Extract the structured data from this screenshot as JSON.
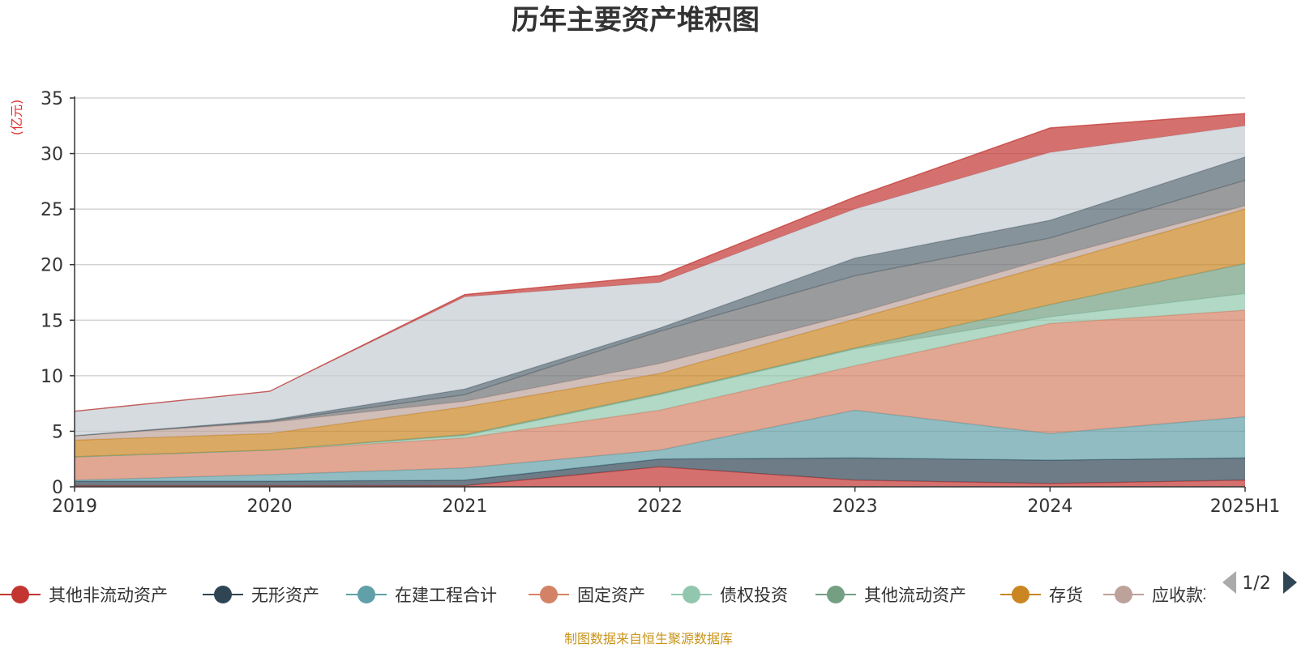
{
  "chart_data": {
    "type": "area",
    "stacked": true,
    "title": "历年主要资产堆积图",
    "unit": "(亿元)",
    "x": [
      "2019",
      "2020",
      "2021",
      "2022",
      "2023",
      "2024",
      "2025H1"
    ],
    "ylim": [
      0,
      35
    ],
    "yticks": [
      0,
      5,
      10,
      15,
      20,
      25,
      30,
      35
    ],
    "grid": true,
    "legend_position": "bottom",
    "series": [
      {
        "name": "其他非流动资产",
        "color": "#c23531",
        "values": [
          0.1,
          0.1,
          0.1,
          1.8,
          0.6,
          0.3,
          0.6
        ]
      },
      {
        "name": "无形资产",
        "color": "#2f4554",
        "values": [
          0.4,
          0.4,
          0.5,
          0.7,
          2.0,
          2.1,
          2.0
        ]
      },
      {
        "name": "在建工程合计",
        "color": "#61a0a8",
        "values": [
          0.1,
          0.6,
          1.1,
          0.8,
          4.3,
          2.4,
          3.7
        ]
      },
      {
        "name": "固定资产",
        "color": "#d48265",
        "values": [
          2.1,
          2.2,
          2.7,
          3.6,
          4.0,
          9.9,
          9.6
        ]
      },
      {
        "name": "债权投资",
        "color": "#91c7ae",
        "values": [
          0.0,
          0.0,
          0.2,
          1.4,
          1.5,
          0.6,
          1.5
        ]
      },
      {
        "name": "其他流动资产",
        "color": "#749f83",
        "values": [
          0.0,
          0.0,
          0.1,
          0.1,
          0.1,
          1.1,
          2.7
        ]
      },
      {
        "name": "存货",
        "color": "#ca8622",
        "values": [
          1.5,
          1.5,
          2.5,
          1.8,
          2.6,
          3.6,
          4.9
        ]
      },
      {
        "name": "应收款项",
        "color": "#bda29a",
        "values": [
          0.4,
          1.0,
          0.5,
          0.9,
          0.5,
          0.6,
          0.3
        ]
      },
      {
        "name": "",
        "color": "#6e7074",
        "values": [
          0.0,
          0.1,
          0.6,
          2.9,
          3.4,
          1.8,
          2.3
        ]
      },
      {
        "name": "",
        "color": "#546570",
        "values": [
          0.0,
          0.1,
          0.5,
          0.3,
          1.6,
          1.6,
          2.1
        ]
      },
      {
        "name": "",
        "color": "#c4ccd3",
        "values": [
          2.2,
          2.6,
          8.3,
          4.1,
          4.4,
          6.1,
          2.8
        ]
      },
      {
        "name": "",
        "color": "#c23531",
        "values": [
          0.0,
          0.0,
          0.2,
          0.6,
          1.1,
          2.2,
          1.1
        ]
      }
    ]
  },
  "legend": {
    "page": "1/2"
  },
  "footer": {
    "source": "制图数据来自恒生聚源数据库"
  }
}
